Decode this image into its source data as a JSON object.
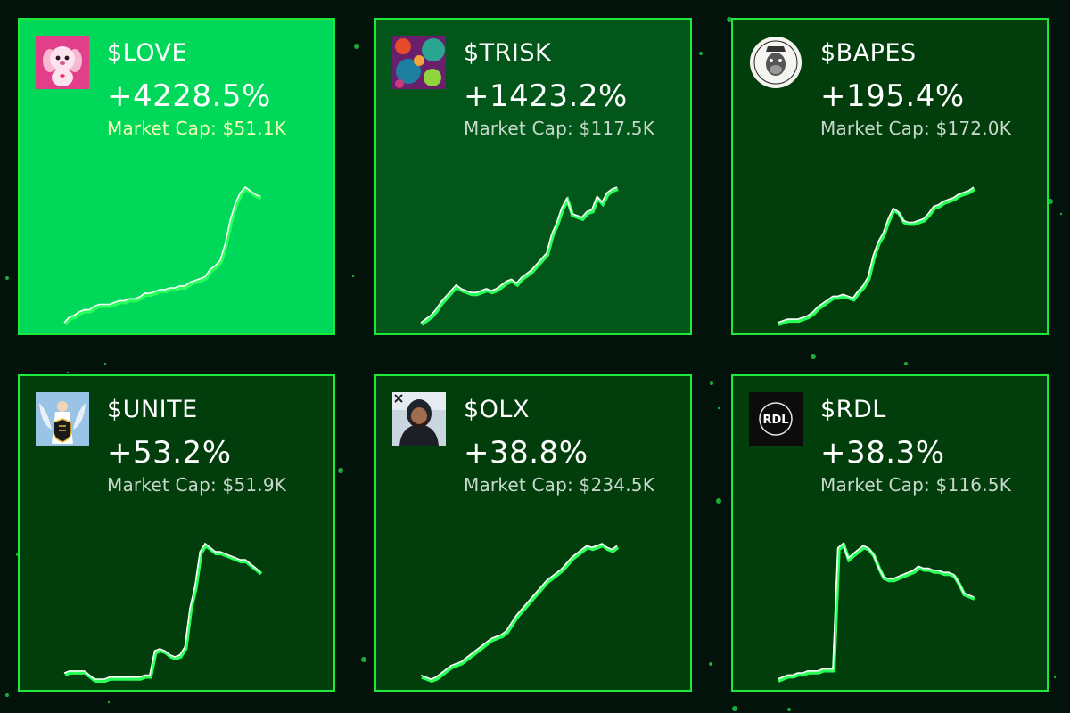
{
  "colors": {
    "background": "#03130b",
    "border": "#1ee83a",
    "card_hot": "#00d85a",
    "card_mid": "#03561a",
    "card_dark": "#023d0c",
    "line": "#ffffff",
    "line_shadow": "#2bff5a"
  },
  "tokens": [
    {
      "ticker": "$LOVE",
      "change": "+4228.5%",
      "market_cap": "Market Cap: $51.1K",
      "logo": "pink-puppy-icon",
      "spark": [
        1,
        4,
        5,
        7,
        8,
        8,
        10,
        11,
        11,
        11,
        12,
        13,
        13,
        14,
        14,
        15,
        17,
        17,
        18,
        19,
        19,
        20,
        20,
        21,
        21,
        23,
        24,
        25,
        26,
        30,
        32,
        35,
        44,
        57,
        66,
        72,
        75,
        73,
        71,
        70
      ]
    },
    {
      "ticker": "$TRISK",
      "change": "+1423.2%",
      "market_cap": "Market Cap: $117.5K",
      "logo": "colorful-orbs-icon",
      "spark": [
        1,
        3,
        5,
        8,
        12,
        15,
        18,
        21,
        19,
        18,
        17,
        17,
        18,
        19,
        18,
        19,
        21,
        23,
        24,
        22,
        25,
        27,
        29,
        32,
        35,
        38,
        48,
        54,
        62,
        67,
        59,
        58,
        57,
        60,
        61,
        68,
        65,
        70,
        72,
        73
      ]
    },
    {
      "ticker": "$BAPES",
      "change": "+195.4%",
      "market_cap": "Market Cap: $172.0K",
      "logo": "bored-ape-icon",
      "spark": [
        1,
        2,
        3,
        3,
        3,
        4,
        5,
        7,
        10,
        12,
        14,
        16,
        16,
        17,
        16,
        15,
        19,
        22,
        27,
        39,
        47,
        52,
        60,
        66,
        64,
        59,
        58,
        58,
        59,
        60,
        63,
        67,
        68,
        70,
        71,
        72,
        74,
        75,
        76,
        78
      ]
    },
    {
      "ticker": "$UNITE",
      "change": "+53.2%",
      "market_cap": "Market Cap: $51.9K",
      "logo": "angel-badge-icon",
      "spark": [
        6,
        7,
        7,
        7,
        7,
        5,
        3,
        3,
        3,
        4,
        4,
        4,
        4,
        4,
        4,
        4,
        5,
        5,
        17,
        18,
        17,
        15,
        14,
        15,
        19,
        38,
        49,
        66,
        70,
        68,
        66,
        66,
        65,
        64,
        63,
        62,
        62,
        60,
        58,
        56
      ]
    },
    {
      "ticker": "$OLX",
      "change": "+38.8%",
      "market_cap": "Market Cap: $234.5K",
      "logo": "hooded-man-icon",
      "spark": [
        5,
        4,
        3,
        4,
        6,
        8,
        10,
        11,
        12,
        14,
        16,
        18,
        20,
        22,
        24,
        25,
        26,
        28,
        32,
        36,
        39,
        42,
        45,
        48,
        51,
        54,
        56,
        58,
        60,
        63,
        66,
        68,
        70,
        72,
        71,
        72,
        73,
        71,
        70,
        72
      ]
    },
    {
      "ticker": "$RDL",
      "change": "+38.3%",
      "market_cap": "Market Cap: $116.5K",
      "logo": "rdl-logo",
      "logo_text": "RDL",
      "spark": [
        1,
        2,
        3,
        3,
        4,
        4,
        5,
        5,
        5,
        6,
        6,
        6,
        65,
        67,
        60,
        62,
        64,
        66,
        65,
        62,
        56,
        51,
        50,
        50,
        51,
        52,
        53,
        54,
        56,
        55,
        55,
        54,
        54,
        53,
        53,
        52,
        48,
        43,
        42,
        41
      ]
    }
  ]
}
